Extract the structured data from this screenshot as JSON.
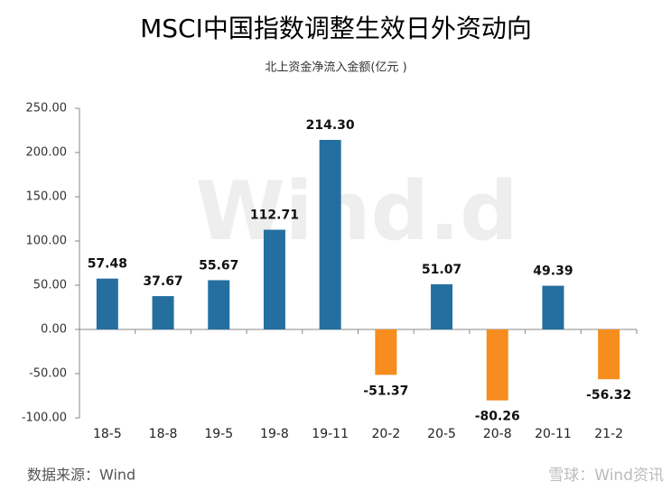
{
  "chart_data": {
    "type": "bar",
    "title": "MSCI中国指数调整生效日外资动向",
    "subtitle": "北上资金净流入金额(亿元 )",
    "source": "数据来源：Wind",
    "watermark": "Wind.d",
    "footer_logo": "雪球：Wind资讯",
    "categories": [
      "18-5",
      "18-8",
      "19-5",
      "19-8",
      "19-11",
      "20-2",
      "20-5",
      "20-8",
      "20-11",
      "21-2"
    ],
    "values": [
      57.48,
      37.67,
      55.67,
      112.71,
      214.3,
      -51.37,
      51.07,
      -80.26,
      49.39,
      -56.32
    ],
    "value_labels": [
      "57.48",
      "37.67",
      "55.67",
      "112.71",
      "214.30",
      "-51.37",
      "51.07",
      "-80.26",
      "49.39",
      "-56.32"
    ],
    "color": "#246fa0",
    "negative_color": "#f68d1e",
    "ylim": [
      -100,
      250
    ],
    "yticks": [
      {
        "value": -100,
        "label": "-100.00"
      },
      {
        "value": -50,
        "label": "-50.00"
      },
      {
        "value": 0,
        "label": "0.00"
      },
      {
        "value": 50,
        "label": "50.00"
      },
      {
        "value": 100,
        "label": "100.00"
      },
      {
        "value": 150,
        "label": "150.00"
      },
      {
        "value": 200,
        "label": "200.00"
      },
      {
        "value": 250,
        "label": "250.00"
      }
    ],
    "grid": false
  }
}
